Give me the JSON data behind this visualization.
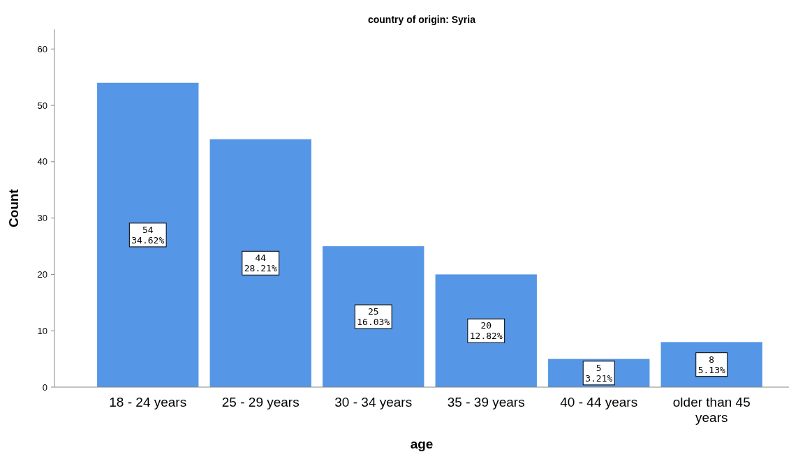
{
  "chart_data": {
    "type": "bar",
    "title": "country of origin: Syria",
    "xlabel": "age",
    "ylabel": "Count",
    "categories": [
      "18 - 24 years",
      "25 - 29 years",
      "30 - 34 years",
      "35 - 39 years",
      "40 - 44 years",
      "older than 45 years"
    ],
    "values": [
      54,
      44,
      25,
      20,
      5,
      8
    ],
    "value_labels": [
      "54\n34.62%",
      "44\n28.21%",
      "25\n16.03%",
      "20\n12.82%",
      "5\n3.21%",
      "8\n5.13%"
    ],
    "color": "#5596e6",
    "ylim": [
      0,
      63.5
    ],
    "yticks": [
      0,
      10,
      20,
      30,
      40,
      50,
      60
    ],
    "grid": false
  }
}
